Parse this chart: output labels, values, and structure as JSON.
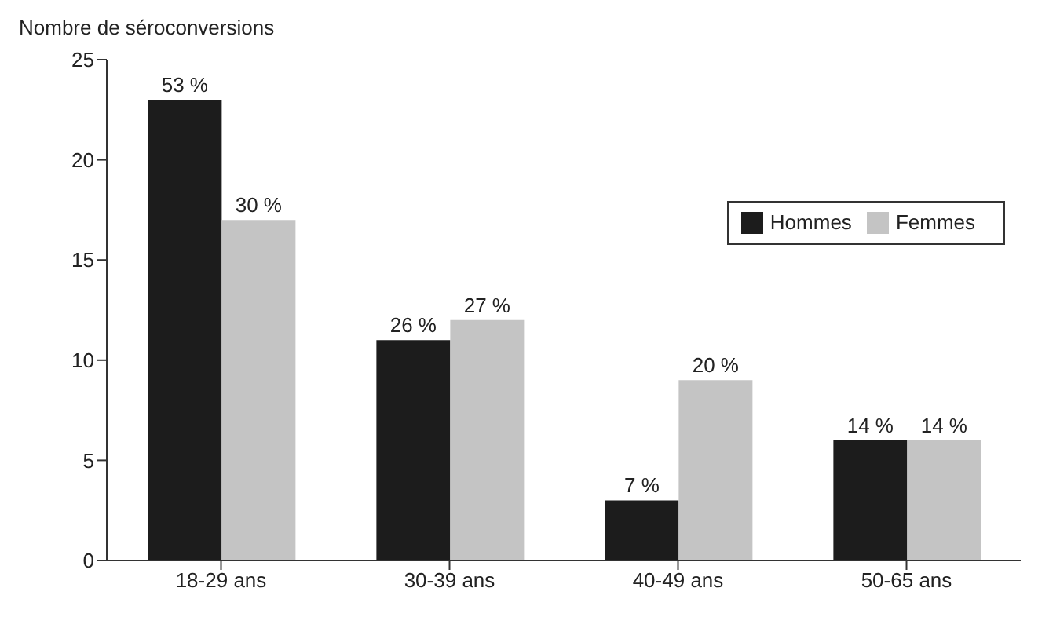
{
  "chart_data": {
    "type": "bar",
    "ylabel": "Nombre de séroconversions",
    "categories": [
      "18-29 ans",
      "30-39 ans",
      "40-49 ans",
      "50-65 ans"
    ],
    "series": [
      {
        "name": "Hommes",
        "color": "#1c1c1c",
        "values": [
          23,
          11,
          3,
          6
        ]
      },
      {
        "name": "Femmes",
        "color": "#c4c4c4",
        "values": [
          17,
          12,
          9,
          6
        ]
      }
    ],
    "annotations": [
      {
        "text": "53 %",
        "x": "18-29 ans",
        "y": 23
      },
      {
        "text": "26 %",
        "x": "30-39 ans",
        "y": 11
      },
      {
        "text": "7 %",
        "x": "40-49 ans",
        "y": 3
      },
      {
        "text": "14 %",
        "x": "50-65 ans",
        "y": 6
      },
      {
        "text": "30 %",
        "x": "18-29 ans",
        "y": 17
      },
      {
        "text": "27 %",
        "x": "30-39 ans",
        "y": 12
      },
      {
        "text": "20 %",
        "x": "40-49 ans",
        "y": 9
      },
      {
        "text": "14 %",
        "x": "50-65 ans",
        "y": 6
      }
    ],
    "ylim": [
      0,
      25
    ],
    "yticks": [
      0,
      5,
      10,
      15,
      20,
      25
    ],
    "grid": false,
    "legend": "top right"
  }
}
